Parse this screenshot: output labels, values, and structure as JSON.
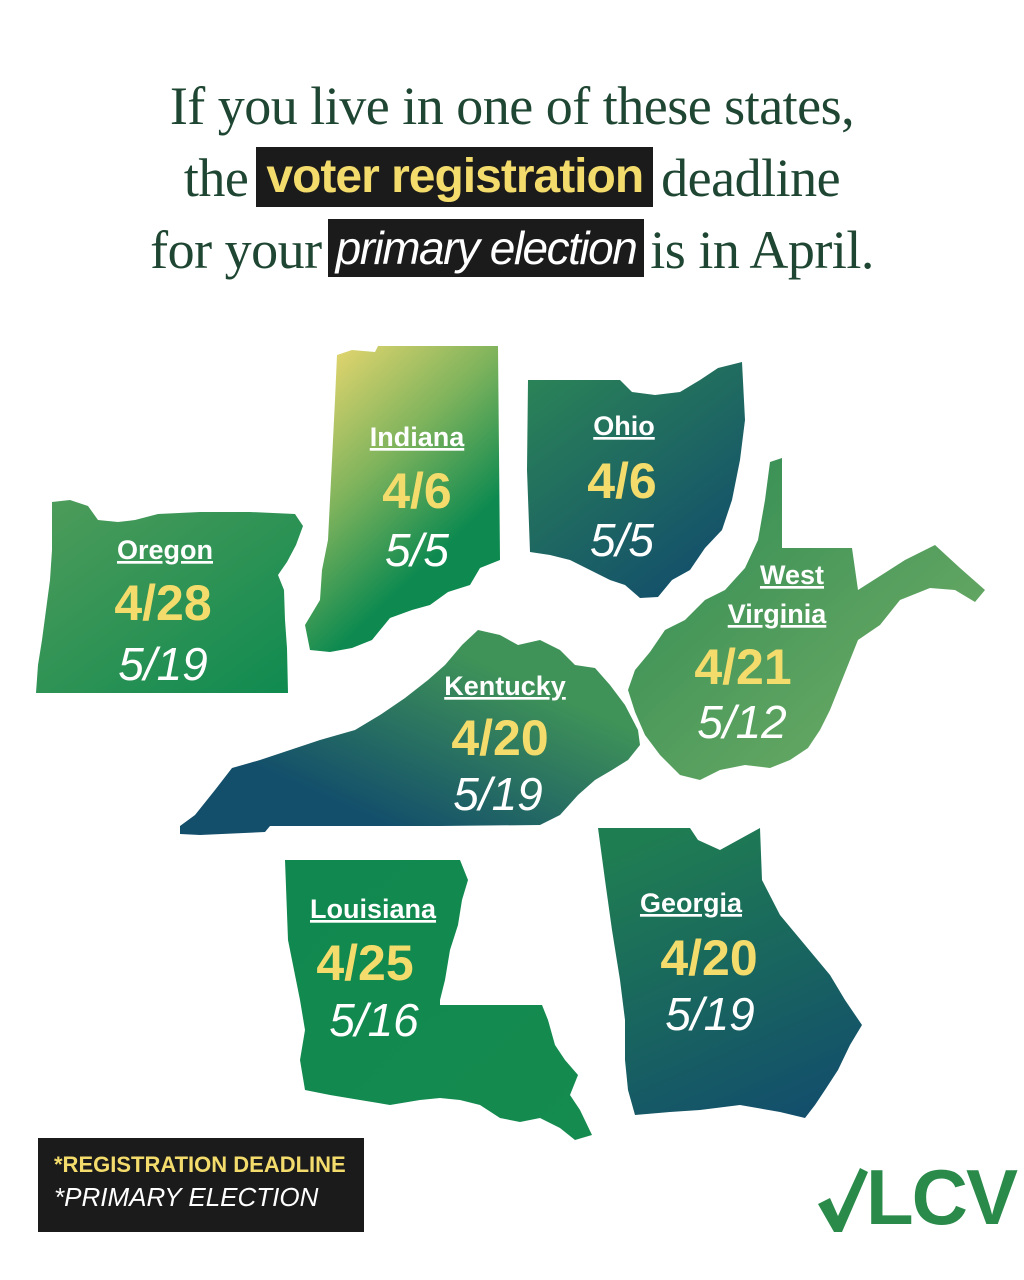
{
  "headline": {
    "line1": "If you live in one of these states,",
    "line2_pre": "the",
    "line2_highlight": "voter registration",
    "line2_post": "deadline",
    "line3_pre": "for your",
    "line3_highlight": "primary election",
    "line3_post": "is in April."
  },
  "states": [
    {
      "name": "Indiana",
      "registration_deadline": "4/6",
      "primary_election": "5/5"
    },
    {
      "name": "Ohio",
      "registration_deadline": "4/6",
      "primary_election": "5/5"
    },
    {
      "name": "Oregon",
      "registration_deadline": "4/28",
      "primary_election": "5/19"
    },
    {
      "name_line1": "West",
      "name_line2": "Virginia",
      "registration_deadline": "4/21",
      "primary_election": "5/12"
    },
    {
      "name": "Kentucky",
      "registration_deadline": "4/20",
      "primary_election": "5/19"
    },
    {
      "name": "Louisiana",
      "registration_deadline": "4/25",
      "primary_election": "5/16"
    },
    {
      "name": "Georgia",
      "registration_deadline": "4/20",
      "primary_election": "5/19"
    }
  ],
  "legend": {
    "registration": "*REGISTRATION DEADLINE",
    "primary": "*PRIMARY ELECTION"
  },
  "logo": {
    "text": "LCV",
    "icon": "checkmark-icon"
  },
  "colors": {
    "headline": "#1e4632",
    "highlight_bg": "#1b1b1b",
    "deadline_yellow": "#f4dc6c",
    "green": "#0e8a50",
    "navy": "#134f6b",
    "light_green": "#5aa364"
  }
}
